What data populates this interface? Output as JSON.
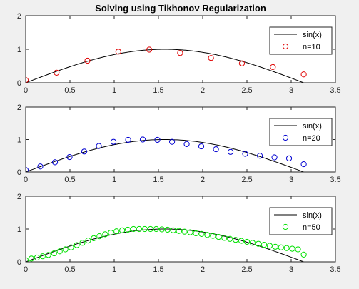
{
  "figure": {
    "title": "Solving using Tikhonov Regularization",
    "background": "#f0f0f0",
    "axes_background": "#ffffff",
    "axis_color": "#262626",
    "curve_color": "#000000"
  },
  "chart_data": [
    {
      "type": "line",
      "title": "Solving using Tikhonov Regularization",
      "xlabel": "",
      "ylabel": "",
      "xlim": [
        0,
        3.5
      ],
      "ylim": [
        0,
        2
      ],
      "xticks": [
        "0",
        "0.5",
        "1",
        "1.5",
        "2",
        "2.5",
        "3",
        "3.5"
      ],
      "yticks": [
        "0",
        "1",
        "2"
      ],
      "grid": false,
      "legend_position": "top-right",
      "series": [
        {
          "name": "sin(x)",
          "style": "line",
          "color": "#000000",
          "function": "sin",
          "x_range": [
            0,
            3.1416
          ]
        },
        {
          "name": "n=10",
          "style": "circle",
          "color": "#e00000",
          "x": [
            0,
            0.349,
            0.698,
            1.047,
            1.396,
            1.745,
            2.094,
            2.443,
            2.793,
            3.142
          ],
          "y": [
            0.08,
            0.3,
            0.66,
            0.93,
            0.99,
            0.89,
            0.74,
            0.58,
            0.47,
            0.25
          ]
        }
      ]
    },
    {
      "type": "line",
      "title": "",
      "xlabel": "",
      "ylabel": "",
      "xlim": [
        0,
        3.5
      ],
      "ylim": [
        0,
        2
      ],
      "xticks": [
        "0",
        "0.5",
        "1",
        "1.5",
        "2",
        "2.5",
        "3",
        "3.5"
      ],
      "yticks": [
        "0",
        "1",
        "2"
      ],
      "grid": false,
      "legend_position": "top-right",
      "series": [
        {
          "name": "sin(x)",
          "style": "line",
          "color": "#000000",
          "function": "sin",
          "x_range": [
            0,
            3.1416
          ]
        },
        {
          "name": "n=20",
          "style": "circle",
          "color": "#0000d0",
          "x": [
            0,
            0.165,
            0.331,
            0.496,
            0.661,
            0.827,
            0.992,
            1.158,
            1.323,
            1.488,
            1.654,
            1.819,
            1.984,
            2.15,
            2.315,
            2.48,
            2.646,
            2.811,
            2.976,
            3.142
          ],
          "y": [
            0.06,
            0.17,
            0.3,
            0.46,
            0.63,
            0.8,
            0.93,
            0.99,
            1.0,
            0.99,
            0.93,
            0.86,
            0.79,
            0.7,
            0.62,
            0.56,
            0.5,
            0.45,
            0.42,
            0.24
          ]
        }
      ]
    },
    {
      "type": "line",
      "title": "",
      "xlabel": "",
      "ylabel": "",
      "xlim": [
        0,
        3.5
      ],
      "ylim": [
        0,
        2
      ],
      "xticks": [
        "0",
        "0.5",
        "1",
        "1.5",
        "2",
        "2.5",
        "3",
        "3.5"
      ],
      "yticks": [
        "0",
        "1",
        "2"
      ],
      "grid": false,
      "legend_position": "top-right",
      "series": [
        {
          "name": "sin(x)",
          "style": "line",
          "color": "#000000",
          "function": "sin",
          "x_range": [
            0,
            3.1416
          ]
        },
        {
          "name": "n=50",
          "style": "circle",
          "color": "#00e000",
          "x": [
            0,
            0.064,
            0.128,
            0.192,
            0.256,
            0.321,
            0.385,
            0.449,
            0.513,
            0.577,
            0.641,
            0.705,
            0.769,
            0.833,
            0.898,
            0.962,
            1.026,
            1.09,
            1.154,
            1.218,
            1.282,
            1.346,
            1.41,
            1.475,
            1.539,
            1.603,
            1.667,
            1.731,
            1.795,
            1.859,
            1.923,
            1.987,
            2.052,
            2.116,
            2.18,
            2.244,
            2.308,
            2.372,
            2.436,
            2.5,
            2.564,
            2.629,
            2.693,
            2.757,
            2.821,
            2.885,
            2.949,
            3.013,
            3.077,
            3.142
          ],
          "y": [
            0.05,
            0.1,
            0.13,
            0.17,
            0.21,
            0.26,
            0.32,
            0.38,
            0.44,
            0.51,
            0.58,
            0.65,
            0.72,
            0.78,
            0.84,
            0.89,
            0.93,
            0.96,
            0.98,
            1.0,
            1.0,
            1.0,
            1.0,
            1.0,
            0.99,
            0.98,
            0.96,
            0.94,
            0.92,
            0.9,
            0.87,
            0.85,
            0.82,
            0.79,
            0.76,
            0.73,
            0.7,
            0.67,
            0.64,
            0.61,
            0.58,
            0.55,
            0.52,
            0.49,
            0.46,
            0.44,
            0.42,
            0.4,
            0.38,
            0.22
          ]
        }
      ]
    }
  ]
}
